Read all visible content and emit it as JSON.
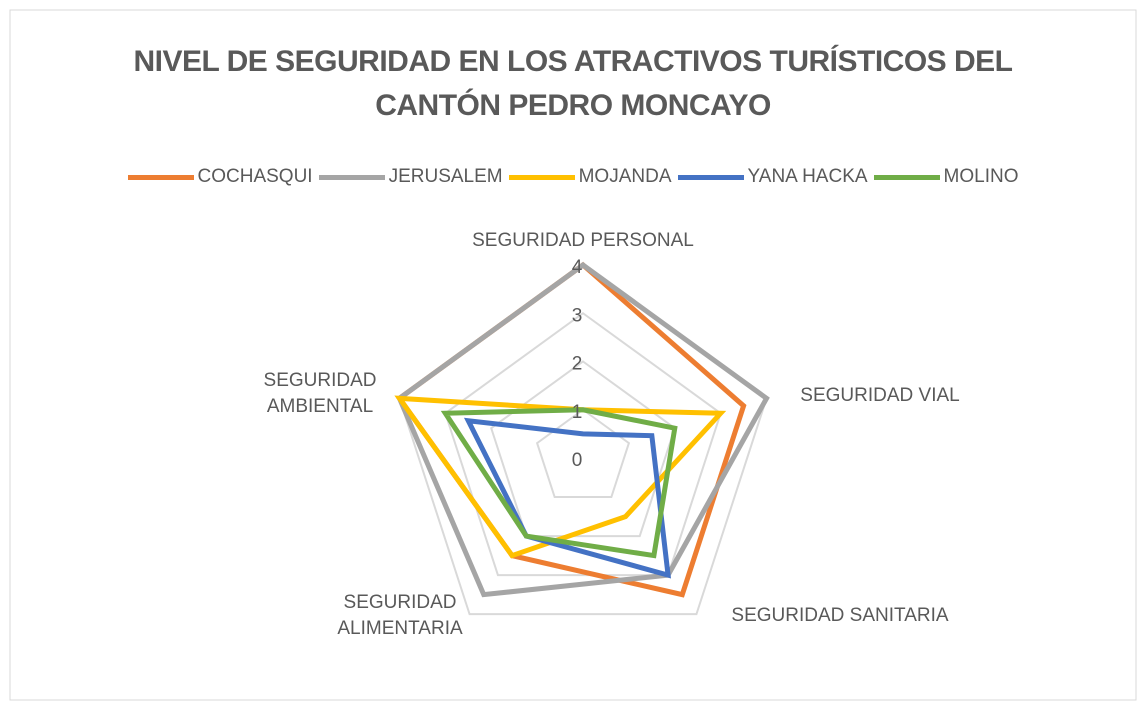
{
  "chart_data": {
    "type": "radar",
    "title": "NIVEL DE SEGURIDAD EN LOS ATRACTIVOS TURÍSTICOS DEL CANTÓN PEDRO MONCAYO",
    "categories": [
      "SEGURIDAD PERSONAL",
      "SEGURIDAD VIAL",
      "SEGURIDAD SANITARIA",
      "SEGURIDAD ALIMENTARIA",
      "SEGURIDAD AMBIENTAL"
    ],
    "series": [
      {
        "name": "COCHASQUI",
        "color": "#ed7d31",
        "values": [
          4,
          3.5,
          3.5,
          2.5,
          4
        ]
      },
      {
        "name": "JERUSALEM",
        "color": "#a5a5a5",
        "values": [
          4,
          4,
          3,
          3.5,
          4
        ]
      },
      {
        "name": "MOJANDA",
        "color": "#ffc000",
        "values": [
          1,
          3,
          1.5,
          2.5,
          4
        ]
      },
      {
        "name": "YANA HACKA",
        "color": "#4472c4",
        "values": [
          0.5,
          1.5,
          3,
          2,
          2.5
        ]
      },
      {
        "name": "MOLINO",
        "color": "#70ad47",
        "values": [
          1,
          2,
          2.5,
          2,
          3
        ]
      }
    ],
    "ylim": [
      0,
      4
    ],
    "yticks": [
      0,
      1,
      2,
      3,
      4
    ],
    "grid": true,
    "legend": "top"
  }
}
